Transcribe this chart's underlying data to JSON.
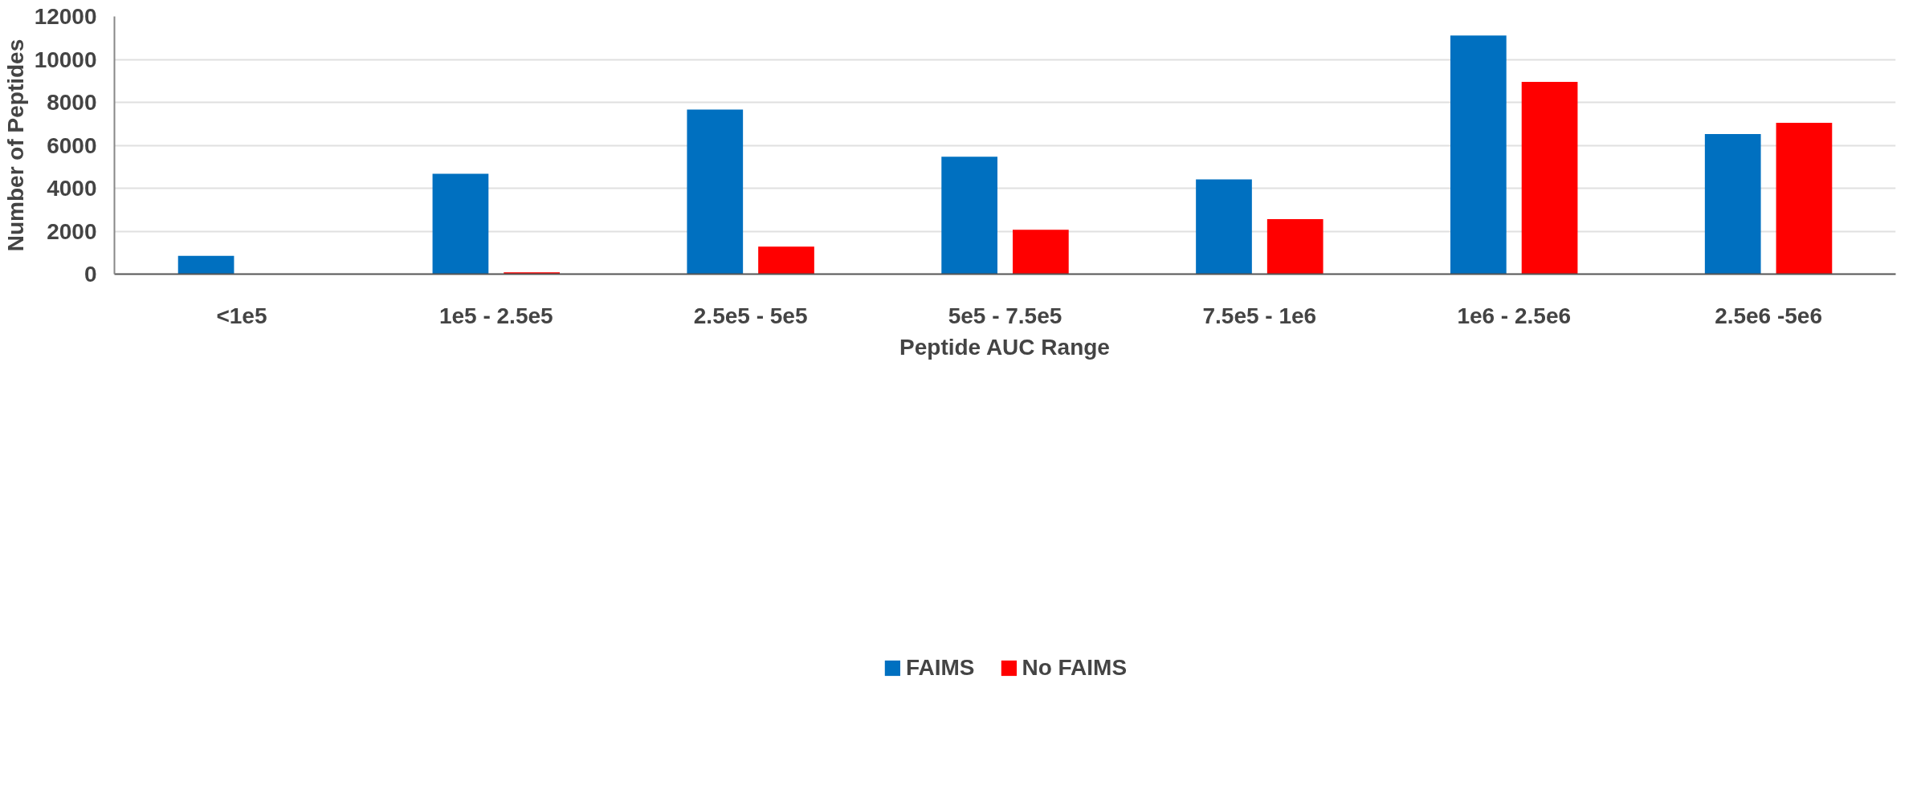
{
  "chart_data": {
    "type": "bar",
    "xlabel": "Peptide AUC Range",
    "ylabel": "Number of Peptides",
    "categories": [
      "<1e5",
      "1e5 - 2.5e5",
      "2.5e5 - 5e5",
      "5e5 - 7.5e5",
      "7.5e5 - 1e6",
      "1e6 - 2.5e6",
      "2.5e6 -5e6"
    ],
    "series": [
      {
        "name": "FAIMS",
        "color": "#0070c0",
        "values": [
          850,
          4670,
          7660,
          5470,
          4410,
          11110,
          6520
        ]
      },
      {
        "name": "No FAIMS",
        "color": "#ff0000",
        "values": [
          0,
          85,
          1280,
          2070,
          2560,
          8950,
          7050
        ]
      }
    ],
    "ylim": [
      0,
      12000
    ],
    "yticks": [
      0,
      2000,
      4000,
      6000,
      8000,
      10000,
      12000
    ],
    "grid": "y",
    "legend": "bottom"
  }
}
